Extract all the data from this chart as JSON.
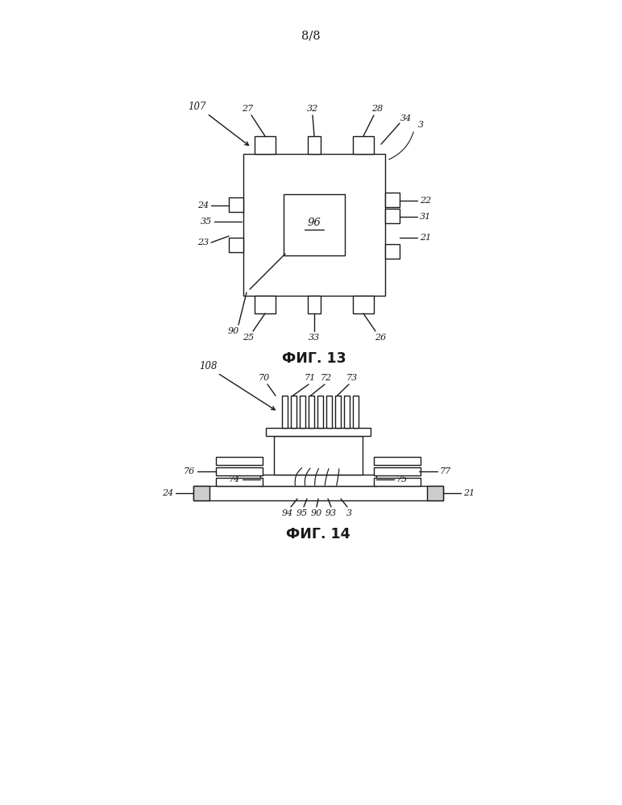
{
  "page_label": "8/8",
  "fig13_label": "ФИГ. 13",
  "fig14_label": "ФИГ. 14",
  "line_color": "#1a1a1a",
  "bg_color": "#ffffff"
}
